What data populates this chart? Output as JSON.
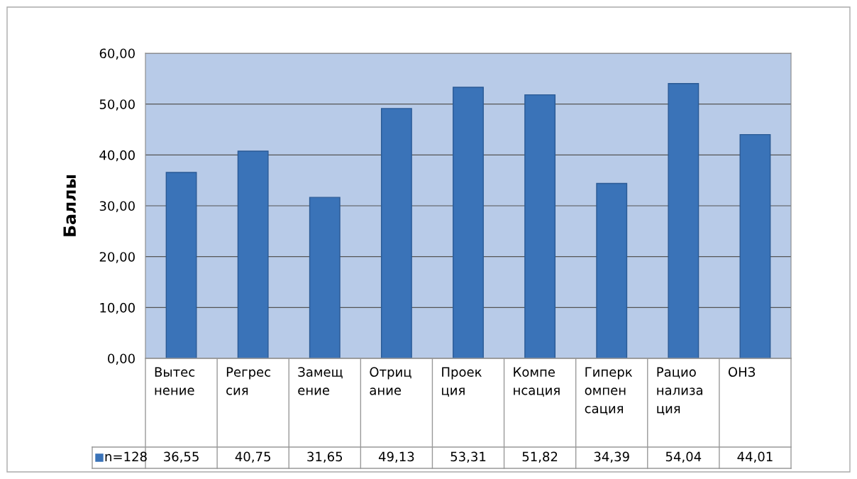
{
  "chart_data": {
    "type": "bar",
    "ylabel": "Баллы",
    "categories": [
      "Вытес\nнение",
      "Регрес\nсия",
      "Замещ\nение",
      "Отриц\nание",
      "Проек\nция",
      "Компе\nнсация",
      "Гиперк\nомпен\nсация",
      "Рацио\nнализа\nция",
      "ОНЗ"
    ],
    "series": [
      {
        "name": "n=128",
        "color": "#3a73b8",
        "values": [
          36.55,
          40.75,
          31.65,
          49.13,
          53.31,
          51.82,
          34.39,
          54.04,
          44.01
        ],
        "value_labels": [
          "36,55",
          "40,75",
          "31,65",
          "49,13",
          "53,31",
          "51,82",
          "34,39",
          "54,04",
          "44,01"
        ]
      }
    ],
    "ylim": [
      0,
      60
    ],
    "yticks": [
      {
        "value": 0,
        "label": "0,00"
      },
      {
        "value": 10,
        "label": "10,00"
      },
      {
        "value": 20,
        "label": "20,00"
      },
      {
        "value": 30,
        "label": "30,00"
      },
      {
        "value": 40,
        "label": "40,00"
      },
      {
        "value": 50,
        "label": "50,00"
      },
      {
        "value": 60,
        "label": "60,00"
      }
    ],
    "grid": "y",
    "legend": "bottom left"
  }
}
